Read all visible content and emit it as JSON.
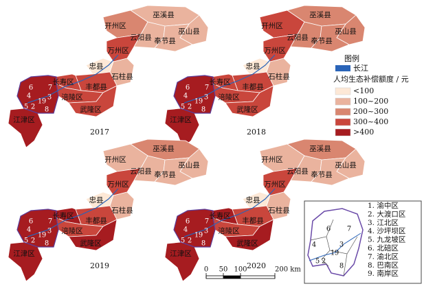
{
  "maps": [
    {
      "year": "2017",
      "fills": [
        "#eab39e",
        "#d98670",
        "#eab39e",
        "#eab39e",
        "#eab39e",
        "#c9463c",
        "#fde8d6",
        "#eab39e",
        "#c9463c",
        "#c9463c",
        "#c9463c",
        "#c9463c",
        "#a61c20",
        "#a61c20"
      ]
    },
    {
      "year": "2018",
      "fills": [
        "#d98670",
        "#c9463c",
        "#d98670",
        "#d98670",
        "#d98670",
        "#c9463c",
        "#fde8d6",
        "#eab39e",
        "#c9463c",
        "#c9463c",
        "#c9463c",
        "#c9463c",
        "#a61c20",
        "#a61c20"
      ]
    },
    {
      "year": "2019",
      "fills": [
        "#d98670",
        "#eab39e",
        "#eab39e",
        "#eab39e",
        "#eab39e",
        "#c9463c",
        "#fde8d6",
        "#eab39e",
        "#c9463c",
        "#a61c20",
        "#c9463c",
        "#a61c20",
        "#a61c20",
        "#a61c20"
      ]
    },
    {
      "year": "2020",
      "fills": [
        "#d98670",
        "#eab39e",
        "#eab39e",
        "#eab39e",
        "#eab39e",
        "#c9463c",
        "#fde8d6",
        "#eab39e",
        "#c9463c",
        "#a61c20",
        "#c9463c",
        "#a61c20",
        "#a61c20",
        "#a61c20"
      ]
    }
  ],
  "region_labels": [
    "巫溪县",
    "开州区",
    "云阳县",
    "巫山县",
    "奉节县",
    "万州区",
    "忠县",
    "石柱县",
    "丰都县",
    "长寿区",
    "涪陵区",
    "武隆区",
    "江津区"
  ],
  "urban_labels": [
    "1",
    "2",
    "3",
    "4",
    "5",
    "6",
    "7",
    "8",
    "9"
  ],
  "legend": {
    "title": "图例",
    "river": "长江",
    "river_color": "#2a64b8",
    "subtitle": "人均生态补偿额度 / 元",
    "classes": [
      {
        "label": "<100",
        "color": "#fde8d6"
      },
      {
        "label": "100~200",
        "color": "#eab39e"
      },
      {
        "label": "200~300",
        "color": "#d98670"
      },
      {
        "label": "300~400",
        "color": "#c9463c"
      },
      {
        "label": ">400",
        "color": "#a61c20"
      }
    ]
  },
  "scale": {
    "ticks": [
      0,
      50,
      100,
      {
        "value": 200,
        "label": "200 km"
      }
    ]
  },
  "inset": {
    "list": [
      "1. 渝中区",
      "2. 大渡口区",
      "3. 江北区",
      "4. 沙坪坝区",
      "5. 九龙坡区",
      "6. 北碚区",
      "7. 渝北区",
      "8. 巴南区",
      "9. 南岸区"
    ]
  }
}
